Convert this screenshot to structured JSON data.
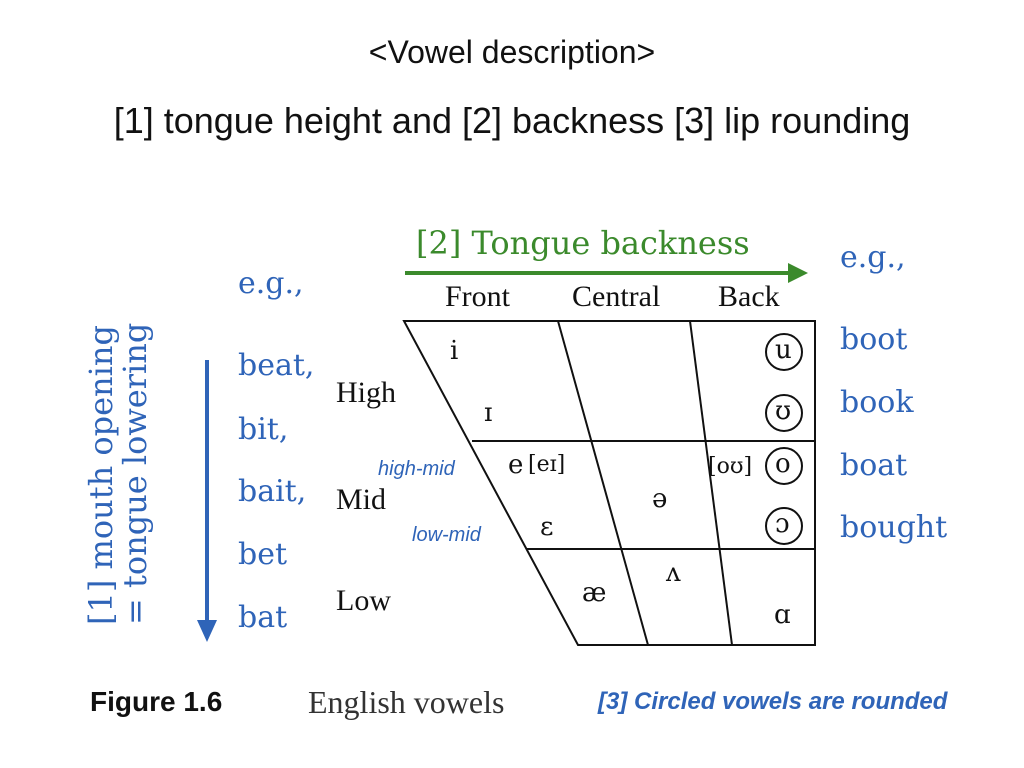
{
  "header": {
    "title": "<Vowel description>",
    "subtitle": "[1] tongue height and [2] backness  [3] lip rounding"
  },
  "backness_axis": {
    "label": "[2] Tongue backness",
    "color": "#3b8a2c"
  },
  "height_axis": {
    "line1": "[1] mouth opening",
    "line2": "= tongue lowering",
    "color": "#2f64b8"
  },
  "chart": {
    "columns": [
      "Front",
      "Central",
      "Back"
    ],
    "rows": [
      "High",
      "Mid",
      "Low"
    ],
    "annotations": {
      "high_mid": "high-mid",
      "low_mid": "low-mid"
    },
    "vowels": {
      "i": "i",
      "ih": "ɪ",
      "e": "e",
      "e_diph": "[eɪ]",
      "eh": "ɛ",
      "schwa": "ə",
      "ae": "æ",
      "wedge": "ʌ",
      "a": "ɑ",
      "o_diph": "[oʊ]",
      "u": "u",
      "uh": "ʊ",
      "o": "o",
      "oh": "ɔ"
    }
  },
  "left_examples": {
    "heading": "e.g.,",
    "items": [
      "beat,",
      "bit,",
      "bait,",
      "bet",
      "bat"
    ]
  },
  "right_examples": {
    "heading": "e.g.,",
    "items": [
      "boot",
      "book",
      "boat",
      "bought"
    ]
  },
  "caption": {
    "figure": "Figure  1.6",
    "text": "English vowels",
    "note": "[3] Circled vowels are rounded"
  },
  "colors": {
    "blue": "#2f64b8",
    "green": "#3b8a2c",
    "text": "#111111"
  }
}
